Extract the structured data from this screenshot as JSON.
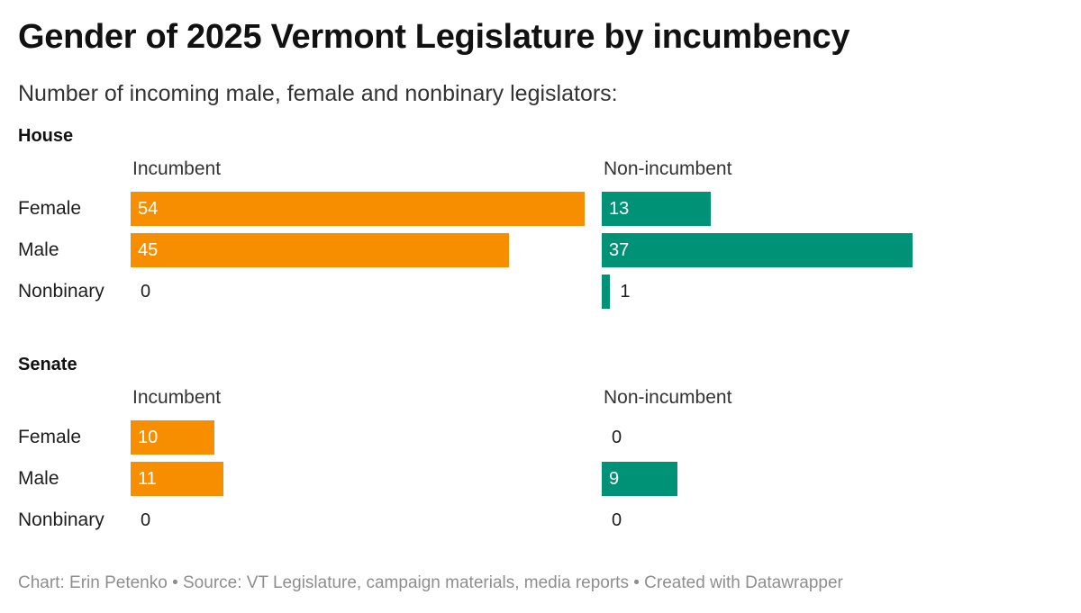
{
  "title": "Gender of 2025 Vermont Legislature by incumbency",
  "subtitle": "Number of incoming male, female and nonbinary legislators:",
  "footer": "Chart: Erin Petenko • Source: VT Legislature, campaign materials, media reports • Created with Datawrapper",
  "colors": {
    "incumbent": "#f68e00",
    "non_incumbent": "#009276"
  },
  "chart_data": [
    {
      "type": "bar",
      "title": "House",
      "categories": [
        "Female",
        "Male",
        "Nonbinary"
      ],
      "series": [
        {
          "name": "Incumbent",
          "values": [
            54,
            45,
            0
          ]
        },
        {
          "name": "Non-incumbent",
          "values": [
            13,
            37,
            1
          ]
        }
      ],
      "xlim": [
        0,
        54
      ]
    },
    {
      "type": "bar",
      "title": "Senate",
      "categories": [
        "Female",
        "Male",
        "Nonbinary"
      ],
      "series": [
        {
          "name": "Incumbent",
          "values": [
            10,
            11,
            0
          ]
        },
        {
          "name": "Non-incumbent",
          "values": [
            0,
            9,
            0
          ]
        }
      ],
      "xlim": [
        0,
        54
      ]
    }
  ]
}
